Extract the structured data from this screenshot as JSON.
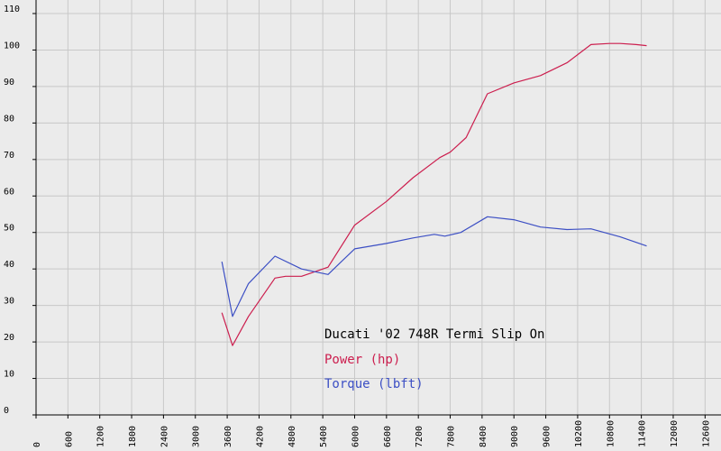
{
  "chart_data": {
    "type": "line",
    "title": "Ducati '02 748R Termi Slip On",
    "xlabel": "",
    "ylabel": "",
    "xlim": [
      0,
      12900
    ],
    "ylim": [
      0,
      110
    ],
    "x_ticks": [
      0,
      600,
      1200,
      1800,
      2400,
      3000,
      3600,
      4200,
      4800,
      5400,
      6000,
      6600,
      7200,
      7800,
      8400,
      9000,
      9600,
      10200,
      10800,
      11400,
      12000,
      12600
    ],
    "y_ticks": [
      0,
      10,
      20,
      30,
      40,
      50,
      60,
      70,
      80,
      90,
      100,
      110
    ],
    "grid": true,
    "legend": "inside-lower-middle",
    "series": [
      {
        "name": "Power (hp)",
        "color": "#cc1e4e",
        "x": [
          3500,
          3700,
          4000,
          4500,
          4700,
          5000,
          5500,
          6000,
          6600,
          7100,
          7600,
          7800,
          8100,
          8500,
          9000,
          9500,
          10000,
          10450,
          10800,
          11000,
          11300,
          11500
        ],
        "y": [
          28,
          19,
          27,
          37.5,
          38,
          38,
          40.5,
          52,
          58.5,
          65,
          70.5,
          72,
          76,
          88,
          91,
          93,
          96.5,
          101.5,
          101.8,
          101.8,
          101.5,
          101.2
        ]
      },
      {
        "name": "Torque (lbft)",
        "color": "#3c4fc4",
        "x": [
          3500,
          3700,
          4000,
          4500,
          5000,
          5500,
          6000,
          6600,
          7100,
          7500,
          7700,
          8000,
          8500,
          9000,
          9500,
          10000,
          10450,
          11000,
          11500
        ],
        "y": [
          42,
          27,
          36,
          43.5,
          40,
          38.5,
          45.5,
          47,
          48.5,
          49.5,
          49,
          50,
          54.3,
          53.5,
          51.5,
          50.8,
          51,
          48.8,
          46.3
        ]
      }
    ]
  }
}
